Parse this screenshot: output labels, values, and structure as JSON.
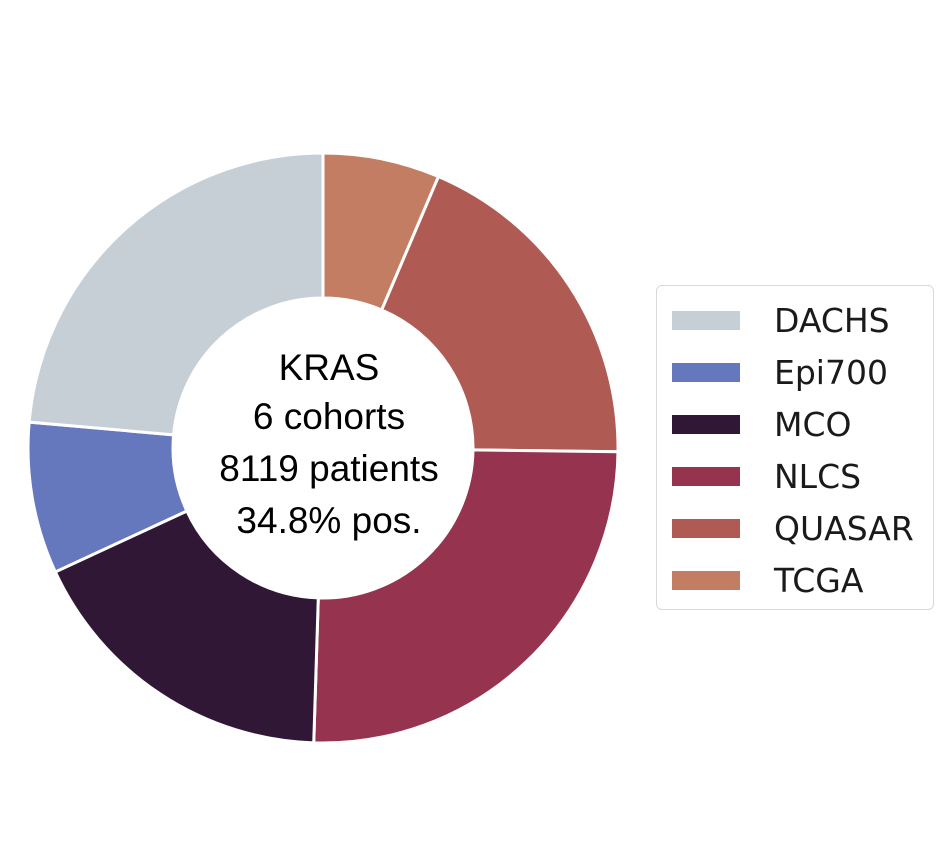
{
  "chart_data": {
    "type": "pie",
    "style": "donut",
    "center_label": [
      "KRAS",
      "6 cohorts",
      "8119 patients",
      "34.8% pos."
    ],
    "slices": [
      {
        "name": "TCGA",
        "value": 6.4,
        "color": "#c27d62"
      },
      {
        "name": "QUASAR",
        "value": 18.8,
        "color": "#b05a54"
      },
      {
        "name": "NLCS",
        "value": 25.3,
        "color": "#96334e"
      },
      {
        "name": "MCO",
        "value": 17.6,
        "color": "#311736"
      },
      {
        "name": "Epi700",
        "value": 8.3,
        "color": "#6577bd"
      },
      {
        "name": "DACHS",
        "value": 23.6,
        "color": "#c6ced6"
      }
    ],
    "start_angle": "top, clockwise",
    "legend": {
      "placement": "right",
      "entries": [
        {
          "name": "DACHS",
          "color": "#c6ced6"
        },
        {
          "name": "Epi700",
          "color": "#6577bd"
        },
        {
          "name": "MCO",
          "color": "#311736"
        },
        {
          "name": "NLCS",
          "color": "#96334e"
        },
        {
          "name": "QUASAR",
          "color": "#b05a54"
        },
        {
          "name": "TCGA",
          "color": "#c27d62"
        }
      ]
    }
  }
}
